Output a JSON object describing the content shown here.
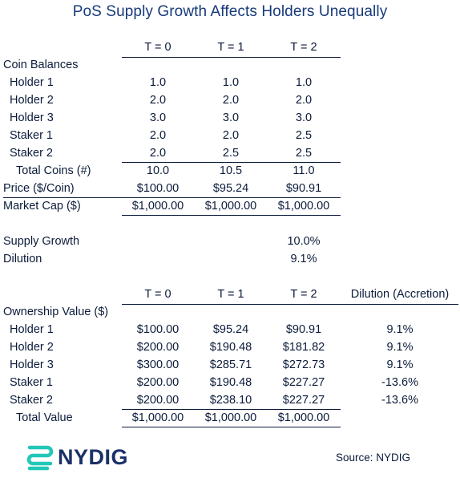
{
  "title": "PoS Supply Growth Affects Holders Unequally",
  "table1": {
    "headers": [
      "T = 0",
      "T = 1",
      "T = 2"
    ],
    "section_label": "Coin Balances",
    "rows": [
      {
        "label": "Holder 1",
        "values": [
          "1.0",
          "1.0",
          "1.0"
        ]
      },
      {
        "label": "Holder 2",
        "values": [
          "2.0",
          "2.0",
          "2.0"
        ]
      },
      {
        "label": "Holder 3",
        "values": [
          "3.0",
          "3.0",
          "3.0"
        ]
      },
      {
        "label": "Staker 1",
        "values": [
          "2.0",
          "2.0",
          "2.5"
        ]
      },
      {
        "label": "Staker 2",
        "values": [
          "2.0",
          "2.5",
          "2.5"
        ]
      }
    ],
    "total_coins": {
      "label": "Total Coins (#)",
      "values": [
        "10.0",
        "10.5",
        "11.0"
      ]
    },
    "price": {
      "label": "Price ($/Coin)",
      "values": [
        "$100.00",
        "$95.24",
        "$90.91"
      ]
    },
    "market_cap": {
      "label": "Market Cap ($)",
      "values": [
        "$1,000.00",
        "$1,000.00",
        "$1,000.00"
      ]
    }
  },
  "supply_growth": {
    "label": "Supply Growth",
    "value": "10.0%"
  },
  "dilution": {
    "label": "Dilution",
    "value": "9.1%"
  },
  "table2": {
    "headers": [
      "T = 0",
      "T = 1",
      "T = 2",
      "Dilution (Accretion)"
    ],
    "section_label": "Ownership Value ($)",
    "rows": [
      {
        "label": "Holder 1",
        "values": [
          "$100.00",
          "$95.24",
          "$90.91",
          "9.1%"
        ]
      },
      {
        "label": "Holder 2",
        "values": [
          "$200.00",
          "$190.48",
          "$181.82",
          "9.1%"
        ]
      },
      {
        "label": "Holder 3",
        "values": [
          "$300.00",
          "$285.71",
          "$272.73",
          "9.1%"
        ]
      },
      {
        "label": "Staker 1",
        "values": [
          "$200.00",
          "$190.48",
          "$227.27",
          "-13.6%"
        ]
      },
      {
        "label": "Staker 2",
        "values": [
          "$200.00",
          "$238.10",
          "$227.27",
          "-13.6%"
        ]
      }
    ],
    "total_value": {
      "label": "Total Value",
      "values": [
        "$1,000.00",
        "$1,000.00",
        "$1,000.00"
      ]
    }
  },
  "footer": {
    "logo_text": "NYDIG",
    "logo_color": "#22c7b8",
    "source": "Source: NYDIG"
  }
}
